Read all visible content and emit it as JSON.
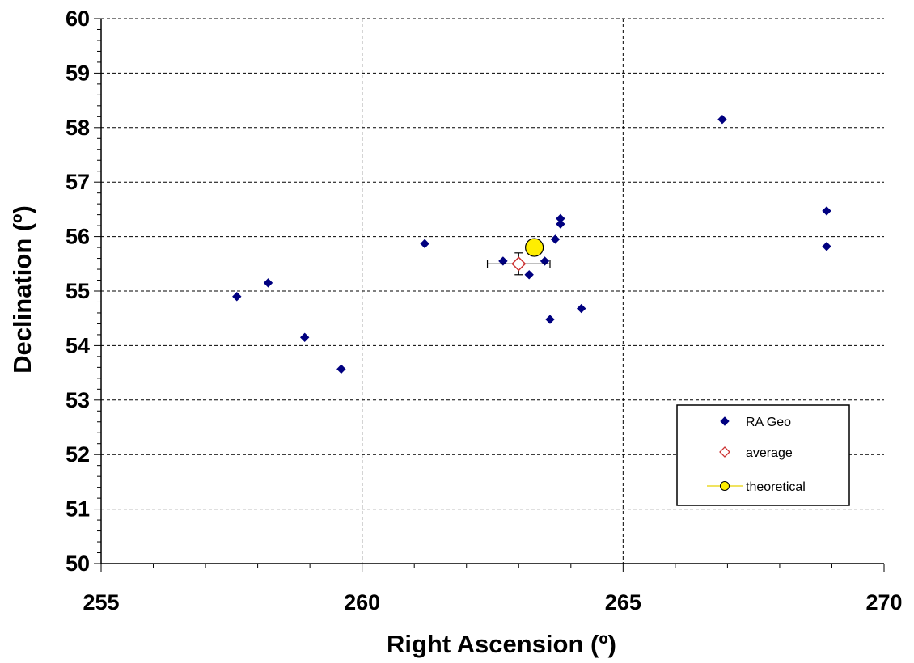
{
  "chart_data": {
    "type": "scatter",
    "xlabel": "Right Ascension (º)",
    "ylabel": "Declination (º)",
    "xlim": [
      255,
      270
    ],
    "ylim": [
      50,
      60
    ],
    "x_ticks": [
      255,
      260,
      265,
      270
    ],
    "y_ticks": [
      50,
      51,
      52,
      53,
      54,
      55,
      56,
      57,
      58,
      59,
      60
    ],
    "grid": true,
    "legend_position": "bottom-right",
    "series": [
      {
        "name": "RA Geo",
        "marker": "diamond-filled",
        "color": "#000080",
        "points": [
          {
            "x": 257.6,
            "y": 54.9
          },
          {
            "x": 258.2,
            "y": 55.15
          },
          {
            "x": 258.9,
            "y": 54.15
          },
          {
            "x": 259.6,
            "y": 53.57
          },
          {
            "x": 261.2,
            "y": 55.87
          },
          {
            "x": 262.7,
            "y": 55.55
          },
          {
            "x": 263.2,
            "y": 55.3
          },
          {
            "x": 263.5,
            "y": 55.55
          },
          {
            "x": 263.6,
            "y": 54.48
          },
          {
            "x": 263.7,
            "y": 55.95
          },
          {
            "x": 263.8,
            "y": 56.33
          },
          {
            "x": 263.8,
            "y": 56.23
          },
          {
            "x": 264.2,
            "y": 54.68
          },
          {
            "x": 266.9,
            "y": 58.15
          },
          {
            "x": 268.9,
            "y": 56.47
          },
          {
            "x": 268.9,
            "y": 55.82
          }
        ]
      },
      {
        "name": "average",
        "marker": "diamond-open",
        "color": "#cc3333",
        "points": [
          {
            "x": 263.0,
            "y": 55.5,
            "x_err": 0.6,
            "y_err": 0.2
          }
        ]
      },
      {
        "name": "theoretical",
        "marker": "circle",
        "color": "#ffee00",
        "points": [
          {
            "x": 263.3,
            "y": 55.8
          }
        ]
      }
    ]
  }
}
